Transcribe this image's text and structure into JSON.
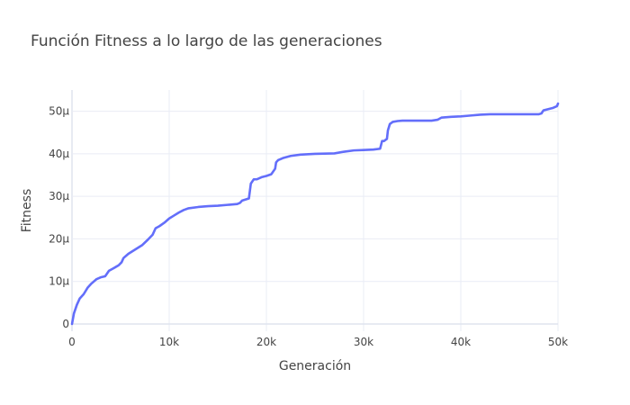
{
  "chart_data": {
    "type": "line",
    "title": "Función Fitness a lo largo de las generaciones",
    "xlabel": "Generación",
    "ylabel": "Fitness",
    "xlim": [
      0,
      50000
    ],
    "ylim": [
      -1.7e-06,
      5.5e-05
    ],
    "x_ticks": [
      0,
      10000,
      20000,
      30000,
      40000,
      50000
    ],
    "x_tick_labels": [
      "0",
      "10k",
      "20k",
      "30k",
      "40k",
      "50k"
    ],
    "y_ticks": [
      0,
      1e-05,
      2e-05,
      3e-05,
      4e-05,
      5e-05
    ],
    "y_tick_labels": [
      "0",
      "10μ",
      "20μ",
      "30μ",
      "40μ",
      "50μ"
    ],
    "grid": true,
    "legend": "none",
    "series": [
      {
        "color": "#636efa",
        "x": [
          0,
          200,
          500,
          800,
          1200,
          1600,
          2000,
          2500,
          3000,
          3400,
          3500,
          3800,
          4200,
          4800,
          5100,
          5300,
          5800,
          6500,
          7200,
          7800,
          8300,
          8600,
          9000,
          9500,
          10000,
          10500,
          11000,
          11500,
          12000,
          13000,
          14000,
          15000,
          16000,
          17000,
          17300,
          17500,
          18200,
          18400,
          18700,
          19000,
          19500,
          20000,
          20500,
          20900,
          21000,
          21200,
          21700,
          22500,
          23500,
          25000,
          27000,
          28000,
          29000,
          30000,
          31000,
          31700,
          31900,
          32100,
          32400,
          32500,
          32700,
          33000,
          33500,
          34000,
          35000,
          36000,
          37000,
          37600,
          38000,
          39000,
          40000,
          41000,
          42000,
          43000,
          44000,
          45000,
          46000,
          47000,
          48000,
          48300,
          48500,
          49000,
          49500,
          49900,
          50000
        ],
        "y": [
          0,
          2.5e-06,
          4.5e-06,
          6e-06,
          7e-06,
          8.5e-06,
          9.5e-06,
          1.05e-05,
          1.1e-05,
          1.12e-05,
          1.15e-05,
          1.25e-05,
          1.3e-05,
          1.38e-05,
          1.45e-05,
          1.55e-05,
          1.65e-05,
          1.75e-05,
          1.85e-05,
          1.98e-05,
          2.1e-05,
          2.25e-05,
          2.3e-05,
          2.38e-05,
          2.48e-05,
          2.55e-05,
          2.62e-05,
          2.68e-05,
          2.72e-05,
          2.75e-05,
          2.77e-05,
          2.78e-05,
          2.8e-05,
          2.82e-05,
          2.85e-05,
          2.9e-05,
          2.95e-05,
          3.3e-05,
          3.4e-05,
          3.4e-05,
          3.45e-05,
          3.48e-05,
          3.52e-05,
          3.65e-05,
          3.8e-05,
          3.85e-05,
          3.9e-05,
          3.95e-05,
          3.98e-05,
          4e-05,
          4.01e-05,
          4.05e-05,
          4.08e-05,
          4.09e-05,
          4.1e-05,
          4.12e-05,
          4.3e-05,
          4.3e-05,
          4.35e-05,
          4.55e-05,
          4.7e-05,
          4.75e-05,
          4.77e-05,
          4.78e-05,
          4.78e-05,
          4.78e-05,
          4.78e-05,
          4.8e-05,
          4.85e-05,
          4.87e-05,
          4.88e-05,
          4.9e-05,
          4.92e-05,
          4.93e-05,
          4.93e-05,
          4.93e-05,
          4.93e-05,
          4.93e-05,
          4.93e-05,
          4.95e-05,
          5.02e-05,
          5.05e-05,
          5.08e-05,
          5.12e-05,
          5.18e-05
        ]
      }
    ]
  }
}
